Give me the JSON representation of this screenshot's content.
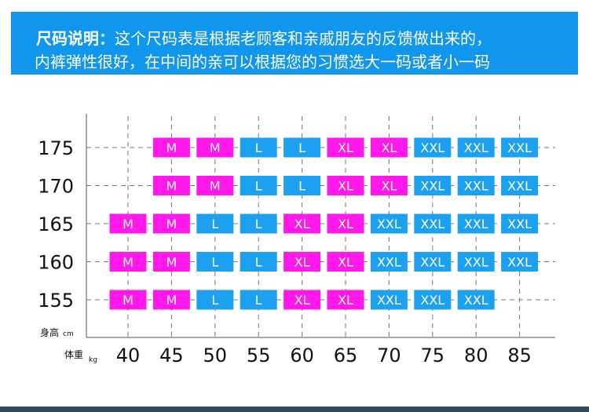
{
  "banner": {
    "title": "尺码说明：",
    "line1": "这个尺码表是根据老顾客和亲戚朋友的反馈做出来的，",
    "line2": "内裤弹性很好，在中间的亲可以根据您的习惯选大一码或者小一码"
  },
  "colors": {
    "banner": "#1196ee",
    "M": "#ff18e9",
    "L": "#1ba1ef",
    "XL": "#ff18e9",
    "XXL": "#1ba1ef",
    "bottom_rule": "#34495e"
  },
  "chart_data": {
    "type": "table",
    "y_axis": {
      "label": "身高",
      "unit": "cm",
      "ticks": [
        "175",
        "170",
        "165",
        "160",
        "155"
      ]
    },
    "x_axis": {
      "label": "体重",
      "unit": "kg",
      "ticks": [
        "40",
        "45",
        "50",
        "55",
        "60",
        "65",
        "70",
        "75",
        "80",
        "85"
      ]
    },
    "rows": [
      {
        "height": "175",
        "sizes": [
          "",
          "M",
          "M",
          "L",
          "L",
          "XL",
          "XL",
          "XXL",
          "XXL",
          "XXL"
        ]
      },
      {
        "height": "170",
        "sizes": [
          "",
          "M",
          "M",
          "L",
          "L",
          "XL",
          "XL",
          "XXL",
          "XXL",
          "XXL"
        ]
      },
      {
        "height": "165",
        "sizes": [
          "M",
          "M",
          "L",
          "L",
          "XL",
          "XL",
          "XXL",
          "XXL",
          "XXL",
          "XXL"
        ]
      },
      {
        "height": "160",
        "sizes": [
          "M",
          "M",
          "L",
          "L",
          "XL",
          "XL",
          "XXL",
          "XXL",
          "XXL",
          "XXL"
        ]
      },
      {
        "height": "155",
        "sizes": [
          "M",
          "M",
          "L",
          "L",
          "XL",
          "XL",
          "XXL",
          "XXL",
          "XXL",
          ""
        ]
      }
    ]
  }
}
